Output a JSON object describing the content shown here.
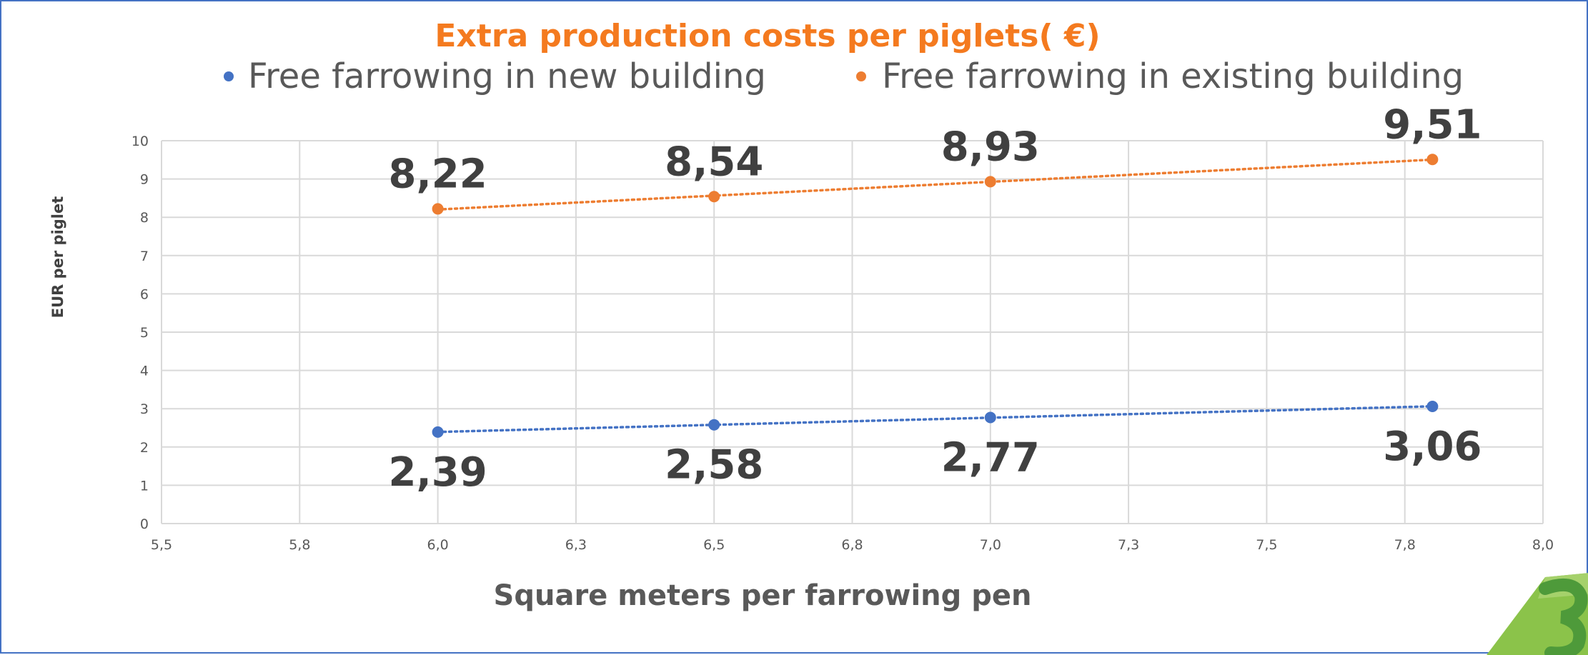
{
  "chart_data": {
    "type": "scatter",
    "title": "Extra production costs per piglets( €)",
    "xlabel": "Square meters per farrowing pen",
    "ylabel": "EUR per piglet",
    "xlim": [
      5.5,
      8.0
    ],
    "ylim": [
      0,
      10
    ],
    "x_ticks": [
      "5,5",
      "5,8",
      "6,0",
      "6,3",
      "6,5",
      "6,8",
      "7,0",
      "7,3",
      "7,5",
      "7,8",
      "8,0"
    ],
    "y_ticks": [
      "0",
      "1",
      "2",
      "3",
      "4",
      "5",
      "6",
      "7",
      "8",
      "9",
      "10"
    ],
    "grid": true,
    "legend_position": "top",
    "series": [
      {
        "name": "Free farrowing in new building",
        "color": "#4472c4",
        "x": [
          6.0,
          6.5,
          7.0,
          7.8
        ],
        "values": [
          2.39,
          2.58,
          2.77,
          3.06
        ],
        "labels": [
          "2,39",
          "2,58",
          "2,77",
          "3,06"
        ],
        "label_position": "below",
        "trendline": "dotted linear"
      },
      {
        "name": "Free farrowing in existing building",
        "color": "#ed7d31",
        "x": [
          6.0,
          6.5,
          7.0,
          7.8
        ],
        "values": [
          8.22,
          8.54,
          8.93,
          9.51
        ],
        "labels": [
          "8,22",
          "8,54",
          "8,93",
          "9,51"
        ],
        "label_position": "above",
        "trendline": "dotted linear"
      }
    ]
  },
  "decoration": {
    "corner_logo": "green-3-logo"
  }
}
